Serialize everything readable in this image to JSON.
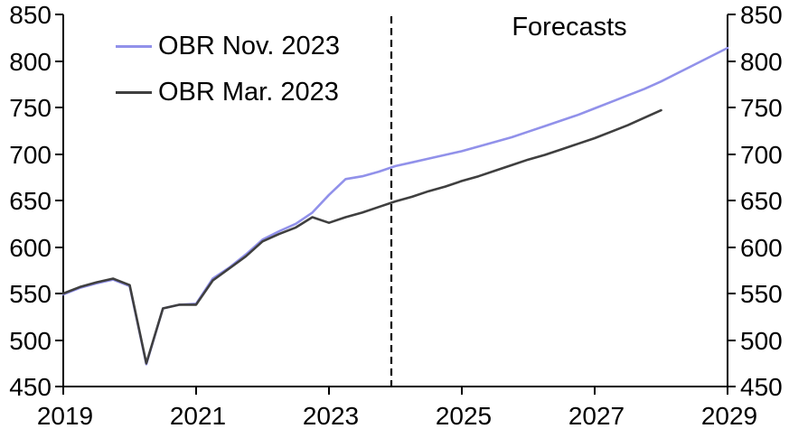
{
  "chart_data": {
    "type": "line",
    "title": "",
    "xlabel": "",
    "ylabel": "",
    "xlim": [
      2019,
      2029
    ],
    "ylim": [
      450,
      850
    ],
    "x_ticks": [
      2019,
      2021,
      2023,
      2025,
      2027,
      2029
    ],
    "x_tick_labels": [
      "2019",
      "2021",
      "2023",
      "2025",
      "2027",
      "2029"
    ],
    "y_ticks": [
      450,
      500,
      550,
      600,
      650,
      700,
      750,
      800,
      850
    ],
    "y_tick_labels": [
      "450",
      "500",
      "550",
      "600",
      "650",
      "700",
      "750",
      "800",
      "850"
    ],
    "y_axis_right_mirror": true,
    "grid": false,
    "legend_position": "top-left",
    "axis_color": "#000000",
    "annotation": {
      "label": "Forecasts",
      "x": 2026.6,
      "y": 834
    },
    "forecast_divider": {
      "x": 2023.94,
      "style": "dashed",
      "color": "#000000"
    },
    "series": [
      {
        "name": "OBR Nov. 2023",
        "color": "#9191ea",
        "points": [
          [
            2019,
            549
          ],
          [
            2019.25,
            556
          ],
          [
            2019.5,
            561
          ],
          [
            2019.75,
            565
          ],
          [
            2020,
            558
          ],
          [
            2020.25,
            474
          ],
          [
            2020.5,
            534
          ],
          [
            2020.75,
            538
          ],
          [
            2021,
            539
          ],
          [
            2021.25,
            566
          ],
          [
            2021.5,
            578
          ],
          [
            2021.75,
            592
          ],
          [
            2022,
            608
          ],
          [
            2022.25,
            617
          ],
          [
            2022.5,
            625
          ],
          [
            2022.75,
            637
          ],
          [
            2023,
            656
          ],
          [
            2023.25,
            673
          ],
          [
            2023.5,
            676
          ],
          [
            2023.75,
            681
          ],
          [
            2024,
            687
          ],
          [
            2024.25,
            691
          ],
          [
            2024.5,
            695
          ],
          [
            2024.75,
            699
          ],
          [
            2025,
            703
          ],
          [
            2025.25,
            708
          ],
          [
            2025.5,
            713
          ],
          [
            2025.75,
            718
          ],
          [
            2026,
            724
          ],
          [
            2026.25,
            730
          ],
          [
            2026.5,
            736
          ],
          [
            2026.75,
            742
          ],
          [
            2027,
            749
          ],
          [
            2027.25,
            756
          ],
          [
            2027.5,
            763
          ],
          [
            2027.75,
            770
          ],
          [
            2028,
            778
          ],
          [
            2028.25,
            787
          ],
          [
            2028.5,
            796
          ],
          [
            2028.75,
            805
          ],
          [
            2029,
            814
          ]
        ]
      },
      {
        "name": "OBR Mar. 2023",
        "color": "#3f3f3f",
        "points": [
          [
            2019,
            550
          ],
          [
            2019.25,
            557
          ],
          [
            2019.5,
            562
          ],
          [
            2019.75,
            566
          ],
          [
            2020,
            559
          ],
          [
            2020.25,
            475
          ],
          [
            2020.5,
            534
          ],
          [
            2020.75,
            538
          ],
          [
            2021,
            538
          ],
          [
            2021.25,
            564
          ],
          [
            2021.5,
            577
          ],
          [
            2021.75,
            590
          ],
          [
            2022,
            606
          ],
          [
            2022.25,
            614
          ],
          [
            2022.5,
            621
          ],
          [
            2022.75,
            632
          ],
          [
            2023,
            626
          ],
          [
            2023.25,
            632
          ],
          [
            2023.5,
            637
          ],
          [
            2023.75,
            643
          ],
          [
            2024,
            649
          ],
          [
            2024.25,
            654
          ],
          [
            2024.5,
            660
          ],
          [
            2024.75,
            665
          ],
          [
            2025,
            671
          ],
          [
            2025.25,
            676
          ],
          [
            2025.5,
            682
          ],
          [
            2025.75,
            688
          ],
          [
            2026,
            694
          ],
          [
            2026.25,
            699
          ],
          [
            2026.5,
            705
          ],
          [
            2026.75,
            711
          ],
          [
            2027,
            717
          ],
          [
            2027.25,
            724
          ],
          [
            2027.5,
            731
          ],
          [
            2027.75,
            739
          ],
          [
            2028,
            747
          ]
        ]
      }
    ]
  }
}
